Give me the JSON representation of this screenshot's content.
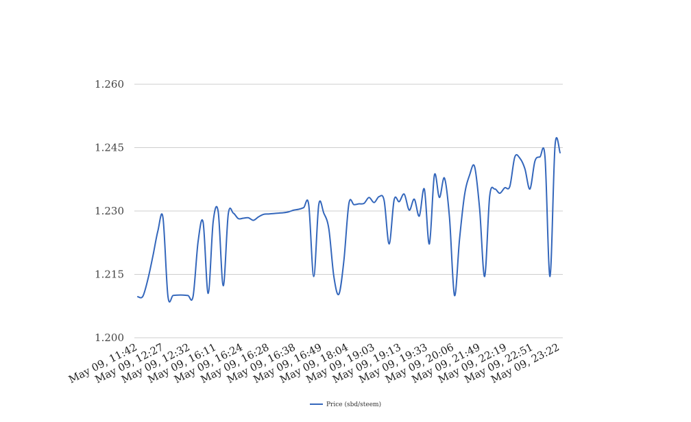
{
  "chart_data": {
    "type": "line",
    "title": "",
    "xlabel": "",
    "ylabel": "",
    "ylim": [
      1.2,
      1.26
    ],
    "yticks": [
      "1.200",
      "1.215",
      "1.230",
      "1.245",
      "1.260"
    ],
    "grid": true,
    "legend_position": "bottom-center",
    "x_tick_labels": [
      "May 09, 11:42",
      "May 09, 12:27",
      "May 09, 12:32",
      "May 09, 16:11",
      "May 09, 16:24",
      "May 09, 16:28",
      "May 09, 16:38",
      "May 09, 16:49",
      "May 09, 18:04",
      "May 09, 19:03",
      "May 09, 19:13",
      "May 09, 19:33",
      "May 09, 20:06",
      "May 09, 21:49",
      "May 09, 22:19",
      "May 09, 22:51",
      "May 09, 23:22"
    ],
    "series": [
      {
        "name": "Price (sbd/steem)",
        "color": "#3366bb",
        "values": [
          1.2097,
          1.2098,
          1.2138,
          1.2193,
          1.2253,
          1.2285,
          1.2098,
          1.21,
          1.2101,
          1.2101,
          1.21,
          1.2098,
          1.2228,
          1.2273,
          1.2105,
          1.2275,
          1.2298,
          1.2123,
          1.2293,
          1.2295,
          1.2282,
          1.2283,
          1.2284,
          1.2278,
          1.2286,
          1.2292,
          1.2293,
          1.2294,
          1.2295,
          1.2296,
          1.2298,
          1.2302,
          1.2304,
          1.2308,
          1.2315,
          1.2145,
          1.2315,
          1.2295,
          1.2258,
          1.2145,
          1.2103,
          1.2183,
          1.2318,
          1.2315,
          1.2317,
          1.2318,
          1.2332,
          1.232,
          1.2334,
          1.2325,
          1.2222,
          1.2327,
          1.2322,
          1.234,
          1.2302,
          1.2328,
          1.2288,
          1.2352,
          1.2222,
          1.2385,
          1.2332,
          1.2378,
          1.2285,
          1.21,
          1.2233,
          1.2338,
          1.2385,
          1.2405,
          1.2305,
          1.2145,
          1.2335,
          1.2352,
          1.2342,
          1.2355,
          1.2358,
          1.2428,
          1.2425,
          1.24,
          1.2352,
          1.2418,
          1.2428,
          1.2428,
          1.2145,
          1.2455,
          1.2438
        ]
      }
    ]
  }
}
